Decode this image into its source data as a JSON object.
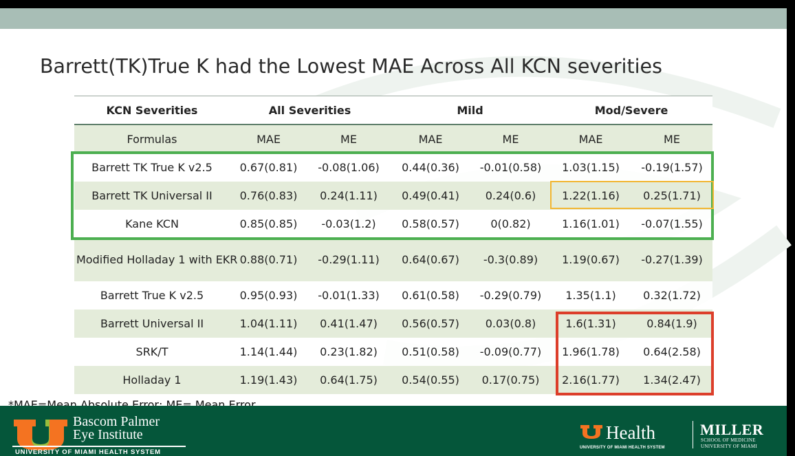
{
  "slide": {
    "title": "Barrett(TK)True K had the Lowest MAE Across All KCN severities",
    "footnote": "*MAE=Mean Absolute Error; ME= Mean Error"
  },
  "table": {
    "header": {
      "severities_label": "KCN Severities",
      "groups": [
        "All Severities",
        "Mild",
        "Mod/Severe"
      ]
    },
    "subheader": {
      "formulas_label": "Formulas",
      "metrics": [
        "MAE",
        "ME",
        "MAE",
        "ME",
        "MAE",
        "ME"
      ]
    },
    "rows": [
      {
        "formula": "Barrett TK True K v2.5",
        "values": [
          "0.67(0.81)",
          "-0.08(1.06)",
          "0.44(0.36)",
          "-0.01(0.58)",
          "1.03(1.15)",
          "-0.19(1.57)"
        ]
      },
      {
        "formula": "Barrett TK Universal II",
        "values": [
          "0.76(0.83)",
          "0.24(1.11)",
          "0.49(0.41)",
          "0.24(0.6)",
          "1.22(1.16)",
          "0.25(1.71)"
        ]
      },
      {
        "formula": "Kane KCN",
        "values": [
          "0.85(0.85)",
          "-0.03(1.2)",
          "0.58(0.57)",
          "0(0.82)",
          "1.16(1.01)",
          "-0.07(1.55)"
        ]
      },
      {
        "formula": "Modified Holladay 1 with EKR",
        "values": [
          "0.88(0.71)",
          "-0.29(1.11)",
          "0.64(0.67)",
          "-0.3(0.89)",
          "1.19(0.67)",
          "-0.27(1.39)"
        ]
      },
      {
        "formula": "Barrett True K v2.5",
        "values": [
          "0.95(0.93)",
          "-0.01(1.33)",
          "0.61(0.58)",
          "-0.29(0.79)",
          "1.35(1.1)",
          "0.32(1.72)"
        ]
      },
      {
        "formula": "Barrett Universal II",
        "values": [
          "1.04(1.11)",
          "0.41(1.47)",
          "0.56(0.57)",
          "0.03(0.8)",
          "1.6(1.31)",
          "0.84(1.9)"
        ]
      },
      {
        "formula": "SRK/T",
        "values": [
          "1.14(1.44)",
          "0.23(1.82)",
          "0.51(0.58)",
          "-0.09(0.77)",
          "1.96(1.78)",
          "0.64(2.58)"
        ]
      },
      {
        "formula": "Holladay 1",
        "values": [
          "1.19(1.43)",
          "0.64(1.75)",
          "0.54(0.55)",
          "0.17(0.75)",
          "2.16(1.77)",
          "1.34(2.47)"
        ]
      }
    ]
  },
  "highlights": {
    "green": "#4caf50",
    "yellow": "#f2b632",
    "red": "#dc3e2a"
  },
  "footer": {
    "bpei_line1": "Bascom Palmer",
    "bpei_line2": "Eye Institute",
    "bpei_system": "UNIVERSITY OF MIAMI HEALTH SYSTEM",
    "uhealth_word": "Health",
    "uhealth_sub": "UNIVERSITY OF MIAMI HEALTH SYSTEM",
    "miller_word": "MILLER",
    "miller_sub1": "SCHOOL OF MEDICINE",
    "miller_sub2": "UNIVERSITY OF MIAMI",
    "colors": {
      "band": "#05563a",
      "brand_orange": "#f47321",
      "accent_green": "#8dc63f"
    }
  }
}
